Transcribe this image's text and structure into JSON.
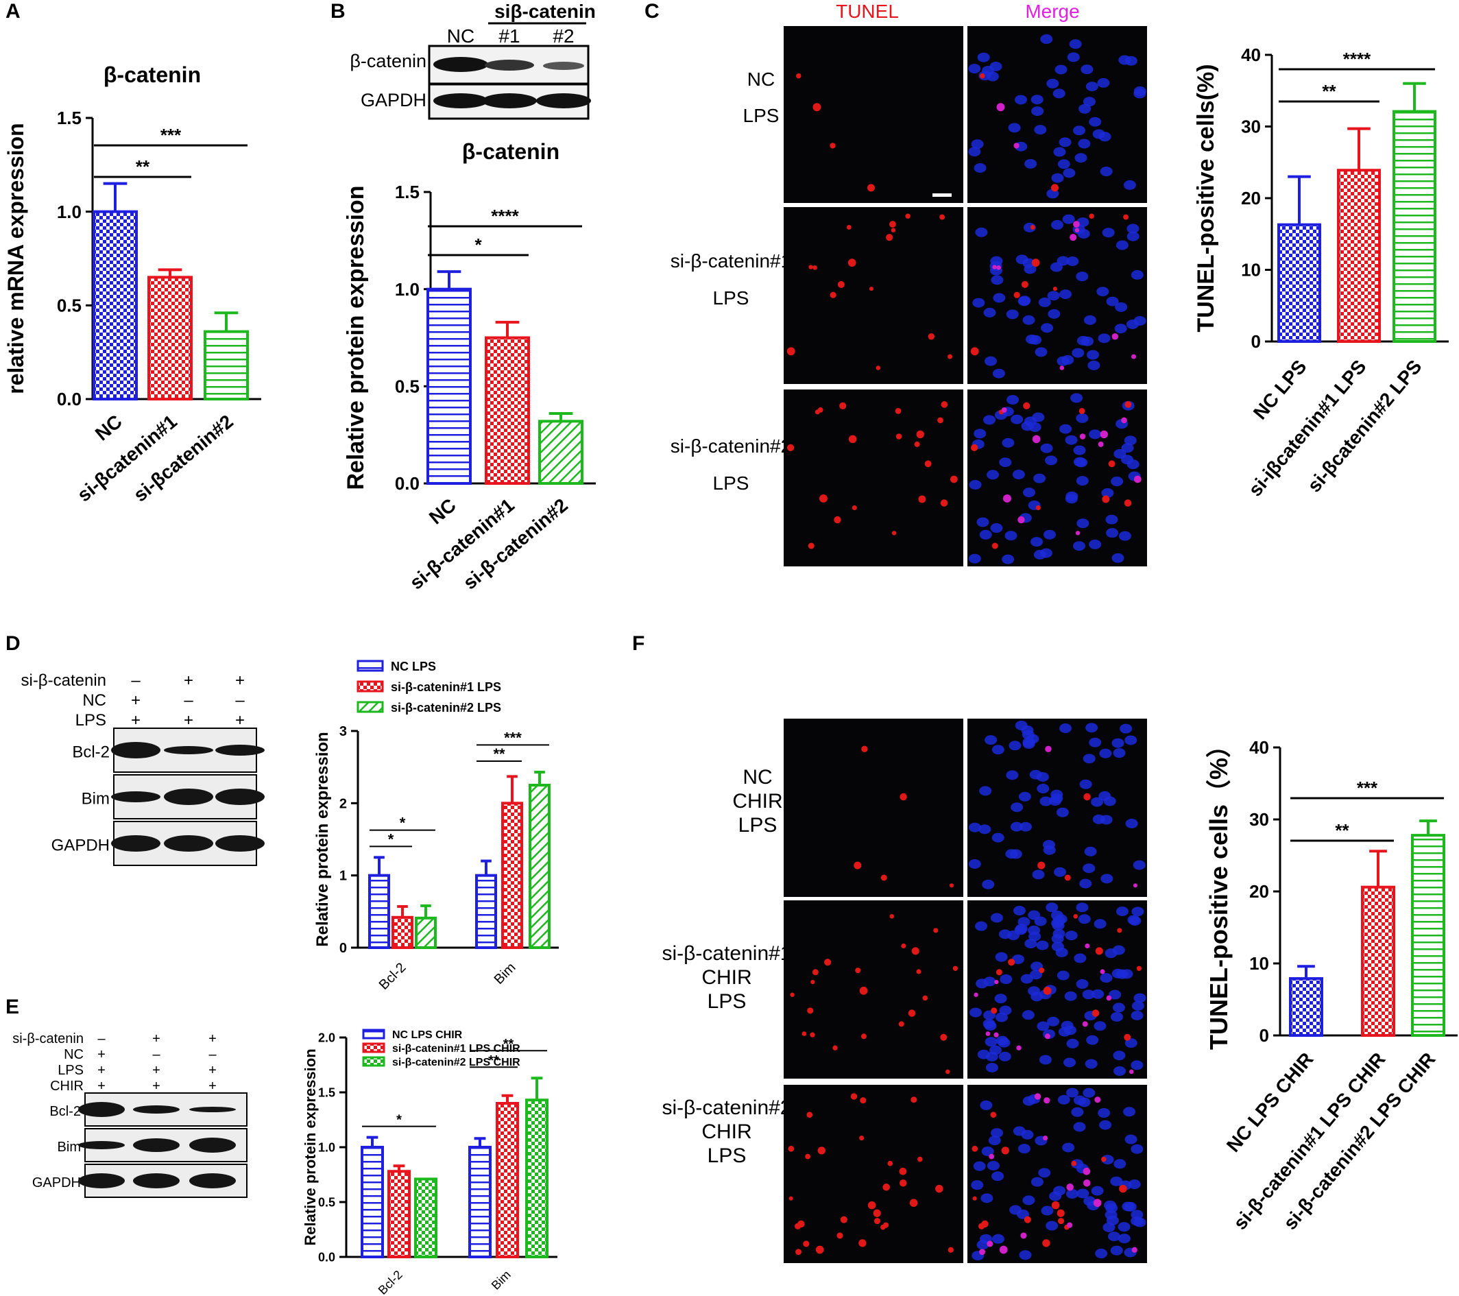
{
  "panels": {
    "A": "A",
    "B": "B",
    "C": "C",
    "D": "D",
    "E": "E",
    "F": "F"
  },
  "blot_b": {
    "header_group": "siβ-catenin",
    "lanes": [
      "NC",
      "#1",
      "#2"
    ],
    "rows": [
      "β-catenin",
      "GAPDH"
    ]
  },
  "blot_c": {
    "col_headers": [
      "TUNEL",
      "Merge"
    ],
    "rows": [
      {
        "l1": "NC",
        "l2": "LPS"
      },
      {
        "l1": "si-β-catenin#1",
        "l2": "LPS"
      },
      {
        "l1": "si-β-catenin#2",
        "l2": "LPS"
      }
    ]
  },
  "blot_d": {
    "conditions": [
      {
        "label": "si-β-catenin",
        "marks": [
          "–",
          "+",
          "+"
        ]
      },
      {
        "label": "NC",
        "marks": [
          "+",
          "–",
          "–"
        ]
      },
      {
        "label": "LPS",
        "marks": [
          "+",
          "+",
          "+"
        ]
      }
    ],
    "rows": [
      "Bcl-2",
      "Bim",
      "GAPDH"
    ]
  },
  "blot_e": {
    "conditions": [
      {
        "label": "si-β-catenin",
        "marks": [
          "–",
          "+",
          "+"
        ]
      },
      {
        "label": "NC",
        "marks": [
          "+",
          "–",
          "–"
        ]
      },
      {
        "label": "LPS",
        "marks": [
          "+",
          "+",
          "+"
        ]
      },
      {
        "label": "CHIR",
        "marks": [
          "+",
          "+",
          "+"
        ]
      }
    ],
    "rows": [
      "Bcl-2",
      "Bim",
      "GAPDH"
    ]
  },
  "blot_f": {
    "rows": [
      {
        "l1": "NC",
        "l2": "CHIR",
        "l3": "LPS"
      },
      {
        "l1": "si-β-catenin#1",
        "l2": "CHIR",
        "l3": "LPS"
      },
      {
        "l1": "si-β-catenin#2",
        "l2": "CHIR",
        "l3": "LPS"
      }
    ]
  },
  "colors": {
    "blue": "#1f1fe0",
    "red": "#e8141e",
    "green": "#1db81d"
  },
  "chart_data": [
    {
      "id": "A",
      "type": "bar",
      "title": "β-catenin",
      "ylabel": "relative mRNA expression",
      "categories": [
        "NC",
        "si-βcatenin#1",
        "si-βcatenin#2"
      ],
      "values": [
        1.0,
        0.65,
        0.36
      ],
      "errors": [
        0.15,
        0.04,
        0.1
      ],
      "ylim": [
        0,
        1.5
      ],
      "yticks": [
        "0.0",
        "0.5",
        "1.0",
        "1.5"
      ],
      "patterns": [
        "check",
        "check",
        "hstripe"
      ],
      "colors": [
        "#1f1fe0",
        "#e8141e",
        "#1db81d"
      ],
      "annotations": [
        {
          "from": 0,
          "to": 1,
          "text": "**"
        },
        {
          "from": 0,
          "to": 2,
          "text": "***"
        }
      ]
    },
    {
      "id": "B",
      "type": "bar",
      "title": "β-catenin",
      "ylabel": "Relative protein expression",
      "categories": [
        "NC",
        "si-β-catenin#1",
        "si-β-catenin#2"
      ],
      "values": [
        1.0,
        0.75,
        0.32
      ],
      "errors": [
        0.09,
        0.08,
        0.04
      ],
      "ylim": [
        0,
        1.5
      ],
      "yticks": [
        "0.0",
        "0.5",
        "1.0",
        "1.5"
      ],
      "patterns": [
        "hstripe",
        "check",
        "diag"
      ],
      "colors": [
        "#1f1fe0",
        "#e8141e",
        "#1db81d"
      ],
      "annotations": [
        {
          "from": 0,
          "to": 1,
          "text": "*"
        },
        {
          "from": 0,
          "to": 2,
          "text": "****"
        }
      ]
    },
    {
      "id": "C",
      "type": "bar",
      "title": "",
      "ylabel": "TUNEL-positive cells(%)",
      "categories": [
        "NC LPS",
        "si-iβcatenin#1 LPS",
        "si-βcatenin#2 LPS"
      ],
      "values": [
        16.3,
        23.9,
        32.1
      ],
      "errors": [
        6.7,
        5.8,
        3.9
      ],
      "ylim": [
        0,
        40
      ],
      "yticks": [
        "0",
        "10",
        "20",
        "30",
        "40"
      ],
      "patterns": [
        "check",
        "check",
        "hstripe"
      ],
      "colors": [
        "#1f1fe0",
        "#e8141e",
        "#1db81d"
      ],
      "annotations": [
        {
          "from": 0,
          "to": 1,
          "text": "**"
        },
        {
          "from": 0,
          "to": 2,
          "text": "****"
        }
      ]
    },
    {
      "id": "D",
      "type": "bar",
      "ylabel": "Relative protein expression",
      "categories": [
        "Bcl-2",
        "Bim"
      ],
      "series": [
        {
          "name": "NC LPS",
          "values": [
            1.0,
            1.0
          ],
          "errors": [
            0.25,
            0.2
          ]
        },
        {
          "name": "si-β-catenin#1 LPS",
          "values": [
            0.42,
            2.0
          ],
          "errors": [
            0.15,
            0.37
          ]
        },
        {
          "name": "si-β-catenin#2 LPS",
          "values": [
            0.41,
            2.25
          ],
          "errors": [
            0.17,
            0.18
          ]
        }
      ],
      "ylim": [
        0,
        3
      ],
      "yticks": [
        "0",
        "1",
        "2",
        "3"
      ],
      "patterns": [
        "hstripe",
        "check",
        "diag"
      ],
      "colors": [
        "#1f1fe0",
        "#e8141e",
        "#1db81d"
      ],
      "legend": "top",
      "annotations": [
        {
          "group": 0,
          "from": 0,
          "to": 1,
          "text": "*"
        },
        {
          "group": 0,
          "from": 0,
          "to": 2,
          "text": "*"
        },
        {
          "group": 1,
          "from": 0,
          "to": 1,
          "text": "**"
        },
        {
          "group": 1,
          "from": 0,
          "to": 2,
          "text": "***"
        }
      ]
    },
    {
      "id": "E",
      "type": "bar",
      "ylabel": "Relative protein expression",
      "categories": [
        "Bcl-2",
        "Bim"
      ],
      "series": [
        {
          "name": "NC LPS CHIR",
          "values": [
            1.0,
            1.0
          ],
          "errors": [
            0.09,
            0.08
          ]
        },
        {
          "name": "si-β-catenin#1 LPS CHIR",
          "values": [
            0.78,
            1.4
          ],
          "errors": [
            0.05,
            0.07
          ]
        },
        {
          "name": "si-β-catenin#2 LPS CHIR",
          "values": [
            0.71,
            1.43
          ],
          "errors": [
            0.0,
            0.2
          ]
        }
      ],
      "ylim": [
        0,
        2.0
      ],
      "yticks": [
        "0.0",
        "0.5",
        "1.0",
        "1.5",
        "2.0"
      ],
      "patterns": [
        "hstripe",
        "check",
        "check"
      ],
      "colors": [
        "#1f1fe0",
        "#e8141e",
        "#1db81d"
      ],
      "legend": "top",
      "annotations": [
        {
          "group": 0,
          "from": 0,
          "to": 2,
          "text": "*"
        },
        {
          "group": 1,
          "from": 0,
          "to": 1,
          "text": "**"
        },
        {
          "group": 1,
          "from": 0,
          "to": 2,
          "text": "**"
        }
      ]
    },
    {
      "id": "F",
      "type": "bar",
      "title": "",
      "ylabel": "TUNEL-positive cells（%）",
      "categories": [
        "NC LPS CHIR",
        "si-β-catenin#1 LPS CHIR",
        "si-β-catenin#2 LPS CHIR"
      ],
      "values": [
        7.9,
        20.6,
        27.8
      ],
      "errors": [
        1.7,
        5.0,
        2.0
      ],
      "ylim": [
        0,
        40
      ],
      "yticks": [
        "0",
        "10",
        "20",
        "30",
        "40"
      ],
      "patterns": [
        "check",
        "check",
        "hstripe"
      ],
      "colors": [
        "#1f1fe0",
        "#e8141e",
        "#1db81d"
      ],
      "annotations": [
        {
          "from": 0,
          "to": 1,
          "text": "**"
        },
        {
          "from": 0,
          "to": 2,
          "text": "***"
        }
      ]
    }
  ]
}
